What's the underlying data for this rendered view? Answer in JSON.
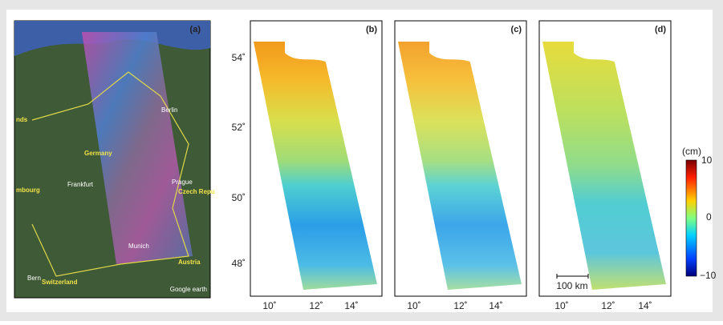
{
  "panels": [
    "(a)",
    "(b)",
    "(c)",
    "(d)"
  ],
  "map_labels": {
    "countries": [
      "Germany",
      "Czech Repu",
      "Austria",
      "Switzerland",
      "nds",
      "mbourg"
    ],
    "cities": [
      "Berlin",
      "Frankfurt",
      "Prague",
      "Munich",
      "Bern"
    ],
    "credit": "Google earth"
  },
  "lat_ticks": [
    "54˚",
    "52˚",
    "50˚",
    "48˚"
  ],
  "lon_ticks": [
    "10˚",
    "12˚",
    "14˚"
  ],
  "colorbar": {
    "unit": "(cm)",
    "ticks": [
      "10",
      "0",
      "−10"
    ]
  },
  "scale_bar": "100 km"
}
